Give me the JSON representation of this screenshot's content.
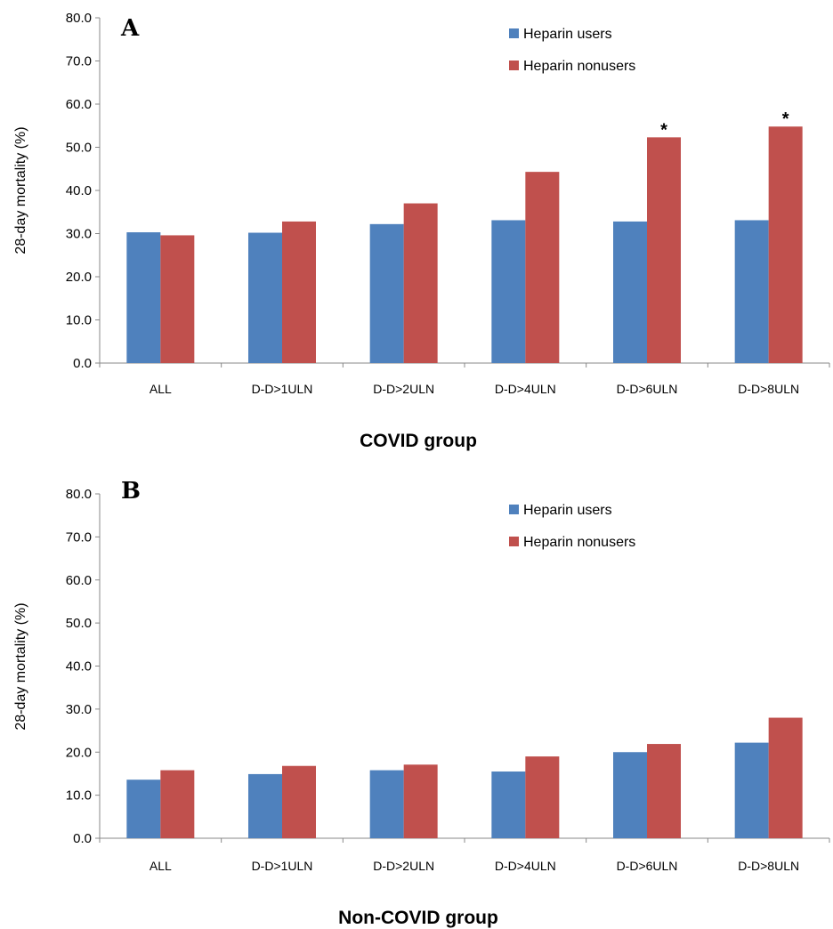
{
  "colors": {
    "users": "#4f81bd",
    "nonusers": "#c0504d"
  },
  "chart_data": [
    {
      "type": "bar",
      "panel_label": "A",
      "xlabel": "COVID group",
      "ylabel": "28-day mortality (%)",
      "ylim": [
        0,
        80
      ],
      "yticks": [
        "0.0",
        "10.0",
        "20.0",
        "30.0",
        "40.0",
        "50.0",
        "60.0",
        "70.0",
        "80.0"
      ],
      "categories": [
        "ALL",
        "D-D>1ULN",
        "D-D>2ULN",
        "D-D>4ULN",
        "D-D>6ULN",
        "D-D>8ULN"
      ],
      "series": [
        {
          "name": "Heparin users",
          "values": [
            30.3,
            30.2,
            32.2,
            33.1,
            32.8,
            33.1
          ]
        },
        {
          "name": "Heparin nonusers",
          "values": [
            29.6,
            32.8,
            37.0,
            44.3,
            52.3,
            54.8
          ]
        }
      ],
      "annotations": [
        {
          "category": "D-D>6ULN",
          "series": "Heparin nonusers",
          "text": "*"
        },
        {
          "category": "D-D>8ULN",
          "series": "Heparin nonusers",
          "text": "*"
        }
      ],
      "legend": "top-right",
      "grid": false
    },
    {
      "type": "bar",
      "panel_label": "B",
      "xlabel": "Non-COVID group",
      "ylabel": "28-day mortality (%)",
      "ylim": [
        0,
        80
      ],
      "yticks": [
        "0.0",
        "10.0",
        "20.0",
        "30.0",
        "40.0",
        "50.0",
        "60.0",
        "70.0",
        "80.0"
      ],
      "categories": [
        "ALL",
        "D-D>1ULN",
        "D-D>2ULN",
        "D-D>4ULN",
        "D-D>6ULN",
        "D-D>8ULN"
      ],
      "series": [
        {
          "name": "Heparin users",
          "values": [
            13.6,
            14.9,
            15.8,
            15.5,
            20.0,
            22.2
          ]
        },
        {
          "name": "Heparin nonusers",
          "values": [
            15.8,
            16.8,
            17.1,
            19.0,
            21.9,
            28.0
          ]
        }
      ],
      "annotations": [],
      "legend": "top-right",
      "grid": false
    }
  ]
}
